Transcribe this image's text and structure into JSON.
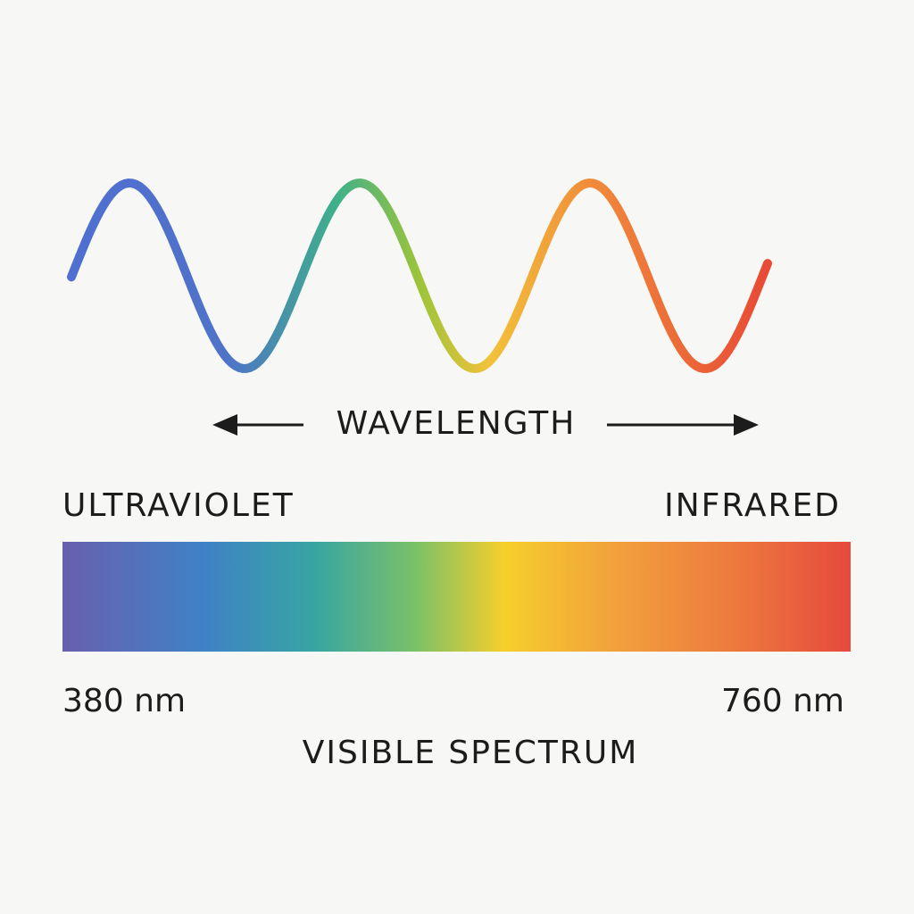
{
  "wavelength_label": "WAVELENGTH",
  "spectrum": {
    "left_label": "ULTRAVIOLET",
    "right_label": "INFRARED",
    "left_value": "380 nm",
    "right_value": "760 nm",
    "title": "VISIBLE SPECTRUM"
  }
}
